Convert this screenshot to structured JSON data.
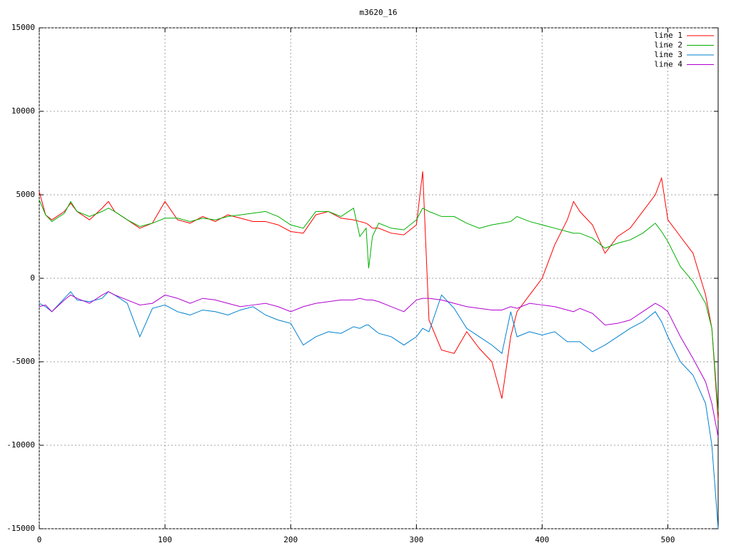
{
  "chart_data": {
    "type": "line",
    "title": "m3620_16",
    "x": [
      0,
      5,
      10,
      20,
      25,
      30,
      40,
      50,
      55,
      60,
      70,
      80,
      90,
      100,
      110,
      120,
      130,
      140,
      150,
      160,
      170,
      180,
      190,
      200,
      210,
      220,
      230,
      240,
      250,
      255,
      260,
      262,
      265,
      270,
      280,
      290,
      300,
      305,
      310,
      320,
      330,
      340,
      350,
      360,
      368,
      375,
      380,
      390,
      400,
      410,
      420,
      425,
      430,
      440,
      450,
      460,
      470,
      480,
      490,
      495,
      500,
      510,
      520,
      530,
      535,
      540
    ],
    "series": [
      {
        "name": "line 1",
        "color": "#ff0000",
        "values": [
          5200,
          3800,
          3500,
          4000,
          4500,
          4000,
          3500,
          4200,
          4600,
          4000,
          3500,
          3000,
          3300,
          4600,
          3500,
          3300,
          3700,
          3400,
          3800,
          3600,
          3400,
          3400,
          3200,
          2800,
          2700,
          3800,
          4000,
          3600,
          3500,
          3400,
          3300,
          3200,
          3000,
          3000,
          2700,
          2600,
          3200,
          6400,
          -2500,
          -4300,
          -4500,
          -3200,
          -4200,
          -5000,
          -7200,
          -3500,
          -2000,
          -1000,
          0,
          2000,
          3500,
          4600,
          4000,
          3200,
          1500,
          2500,
          3000,
          4000,
          5000,
          6000,
          3500,
          2500,
          1500,
          -1000,
          -3000,
          -8500
        ]
      },
      {
        "name": "line 2",
        "color": "#00b000",
        "values": [
          4700,
          3800,
          3400,
          3900,
          4600,
          4000,
          3700,
          4000,
          4200,
          4000,
          3500,
          3100,
          3300,
          3600,
          3600,
          3400,
          3600,
          3500,
          3700,
          3800,
          3900,
          4000,
          3700,
          3200,
          3000,
          4000,
          4000,
          3700,
          4200,
          2500,
          3000,
          600,
          2500,
          3300,
          3000,
          2900,
          3500,
          4200,
          4000,
          3700,
          3700,
          3300,
          3000,
          3200,
          3300,
          3400,
          3700,
          3400,
          3200,
          3000,
          2800,
          2700,
          2700,
          2400,
          1800,
          2100,
          2300,
          2700,
          3300,
          2800,
          2200,
          700,
          -200,
          -1500,
          -3000,
          -8000
        ]
      },
      {
        "name": "line 3",
        "color": "#0080d0",
        "values": [
          -1500,
          -1700,
          -2000,
          -1200,
          -800,
          -1300,
          -1400,
          -1200,
          -800,
          -1000,
          -1500,
          -3500,
          -1800,
          -1600,
          -2000,
          -2200,
          -1900,
          -2000,
          -2200,
          -1900,
          -1700,
          -2200,
          -2500,
          -2700,
          -4000,
          -3500,
          -3200,
          -3300,
          -2900,
          -3000,
          -2800,
          -2800,
          -3000,
          -3300,
          -3500,
          -4000,
          -3500,
          -3000,
          -3200,
          -1000,
          -1800,
          -3000,
          -3500,
          -4000,
          -4500,
          -2000,
          -3500,
          -3200,
          -3400,
          -3200,
          -3800,
          -3800,
          -3800,
          -4400,
          -4000,
          -3500,
          -3000,
          -2600,
          -2000,
          -2600,
          -3500,
          -5000,
          -5800,
          -7500,
          -10000,
          -15000
        ]
      },
      {
        "name": "line 4",
        "color": "#b000d0",
        "values": [
          -1700,
          -1600,
          -2000,
          -1300,
          -1000,
          -1200,
          -1500,
          -1000,
          -800,
          -1000,
          -1300,
          -1600,
          -1500,
          -1000,
          -1200,
          -1500,
          -1200,
          -1300,
          -1500,
          -1700,
          -1600,
          -1500,
          -1700,
          -2000,
          -1700,
          -1500,
          -1400,
          -1300,
          -1300,
          -1200,
          -1300,
          -1300,
          -1300,
          -1400,
          -1700,
          -2000,
          -1300,
          -1200,
          -1200,
          -1300,
          -1500,
          -1700,
          -1800,
          -1900,
          -1900,
          -1700,
          -1800,
          -1500,
          -1600,
          -1700,
          -1900,
          -2000,
          -1800,
          -2100,
          -2800,
          -2700,
          -2500,
          -2000,
          -1500,
          -1700,
          -2000,
          -3500,
          -4800,
          -6200,
          -7500,
          -9500
        ]
      }
    ],
    "xlim": [
      0,
      540
    ],
    "xticks": [
      0,
      100,
      200,
      300,
      400,
      500
    ],
    "ylim": [
      -15000,
      15000
    ],
    "yticks": [
      -15000,
      -10000,
      -5000,
      0,
      5000,
      10000,
      15000
    ],
    "grid": true,
    "legend": "top-right"
  }
}
